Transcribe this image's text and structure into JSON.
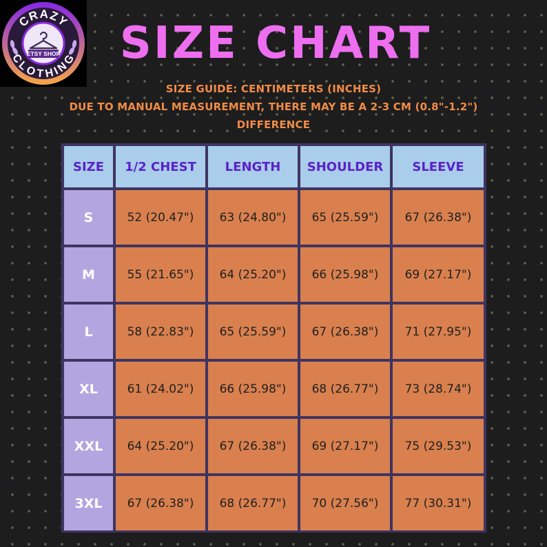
{
  "logo": {
    "top_text": "CRAZY",
    "middle_text": "ETSY SHOP",
    "bottom_text": "CLOTHING",
    "icon": "hanger-icon"
  },
  "title": "SIZE  CHART",
  "subtitle_lines": [
    "SIZE GUIDE: CENTIMETERS (INCHES)",
    "DUE TO MANUAL MEASUREMENT, THERE MAY BE A 2-3 CM (0.8\"-1.2\")",
    "DIFFERENCE"
  ],
  "colors": {
    "title": "#ee6ef0",
    "subtitle": "#f28c46",
    "header_bg": "#a9cdea",
    "header_text": "#5a22c8",
    "size_bg": "#b3a6e0",
    "value_bg": "#d9804e",
    "grid_bg": "#3e3461"
  },
  "table": {
    "headers": [
      "SIZE",
      "1/2 CHEST",
      "LENGTH",
      "SHOULDER",
      "SLEEVE"
    ],
    "rows": [
      [
        "S",
        "52 (20.47\")",
        "63 (24.80\")",
        "65 (25.59\")",
        "67 (26.38\")"
      ],
      [
        "M",
        "55 (21.65\")",
        "64 (25.20\")",
        "66 (25.98\")",
        "69 (27.17\")"
      ],
      [
        "L",
        "58 (22.83\")",
        "65 (25.59\")",
        "67 (26.38\")",
        "71 (27.95\")"
      ],
      [
        "XL",
        "61 (24.02\")",
        "66 (25.98\")",
        "68 (26.77\")",
        "73 (28.74\")"
      ],
      [
        "XXL",
        "64 (25.20\")",
        "67 (26.38\")",
        "69 (27.17\")",
        "75 (29.53\")"
      ],
      [
        "3XL",
        "67 (26.38\")",
        "68 (26.77\")",
        "70 (27.56\")",
        "77 (30.31\")"
      ]
    ]
  }
}
